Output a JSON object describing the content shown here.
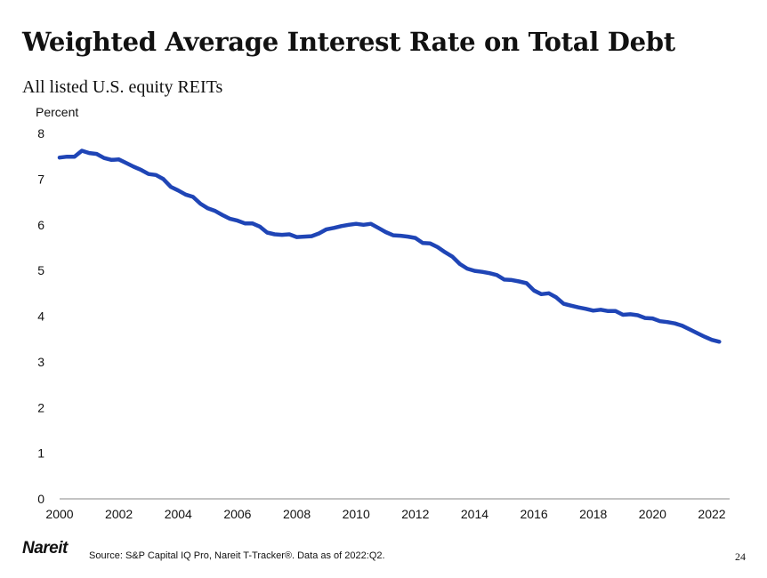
{
  "page": {
    "title": "Weighted Average Interest Rate on Total Debt",
    "subtitle": "All listed U.S. equity REITs",
    "logo_text": "Nareit",
    "source": "Source: S&P Capital IQ Pro, Nareit T-Tracker®. Data as of 2022:Q2.",
    "page_number": "24"
  },
  "chart_data": {
    "type": "line",
    "ylabel": "Percent",
    "xlabel": "",
    "xlim": [
      2000,
      2022.6
    ],
    "ylim": [
      0,
      8
    ],
    "yticks": [
      0,
      1,
      2,
      3,
      4,
      5,
      6,
      7,
      8
    ],
    "xticks": [
      2000,
      2002,
      2004,
      2006,
      2008,
      2010,
      2012,
      2014,
      2016,
      2018,
      2020,
      2022
    ],
    "grid": false,
    "line_color": "#1f45b6",
    "series": [
      {
        "x": [
          2000.0,
          2000.25,
          2000.5,
          2000.75,
          2001.0,
          2001.25,
          2001.5,
          2001.75,
          2002.0,
          2002.25,
          2002.5,
          2002.75,
          2003.0,
          2003.25,
          2003.5,
          2003.75,
          2004.0,
          2004.25,
          2004.5,
          2004.75,
          2005.0,
          2005.25,
          2005.5,
          2005.75,
          2006.0,
          2006.25,
          2006.5,
          2006.75,
          2007.0,
          2007.25,
          2007.5,
          2007.75,
          2008.0,
          2008.25,
          2008.5,
          2008.75,
          2009.0,
          2009.25,
          2009.5,
          2009.75,
          2010.0,
          2010.25,
          2010.5,
          2010.75,
          2011.0,
          2011.25,
          2011.5,
          2011.75,
          2012.0,
          2012.25,
          2012.5,
          2012.75,
          2013.0,
          2013.25,
          2013.5,
          2013.75,
          2014.0,
          2014.25,
          2014.5,
          2014.75,
          2015.0,
          2015.25,
          2015.5,
          2015.75,
          2016.0,
          2016.25,
          2016.5,
          2016.75,
          2017.0,
          2017.25,
          2017.5,
          2017.75,
          2018.0,
          2018.25,
          2018.5,
          2018.75,
          2019.0,
          2019.25,
          2019.5,
          2019.75,
          2020.0,
          2020.25,
          2020.5,
          2020.75,
          2021.0,
          2021.25,
          2021.5,
          2021.75,
          2022.0,
          2022.25
        ],
        "values": [
          7.47,
          7.49,
          7.49,
          7.62,
          7.57,
          7.55,
          7.46,
          7.42,
          7.43,
          7.35,
          7.27,
          7.2,
          7.11,
          7.09,
          7.0,
          6.83,
          6.75,
          6.66,
          6.61,
          6.46,
          6.36,
          6.3,
          6.21,
          6.13,
          6.09,
          6.03,
          6.03,
          5.96,
          5.83,
          5.79,
          5.78,
          5.79,
          5.73,
          5.74,
          5.75,
          5.81,
          5.9,
          5.93,
          5.97,
          6.0,
          6.02,
          6.0,
          6.02,
          5.93,
          5.84,
          5.77,
          5.76,
          5.74,
          5.71,
          5.6,
          5.59,
          5.51,
          5.4,
          5.3,
          5.14,
          5.04,
          4.99,
          4.97,
          4.94,
          4.9,
          4.8,
          4.79,
          4.76,
          4.72,
          4.56,
          4.48,
          4.5,
          4.41,
          4.27,
          4.23,
          4.19,
          4.16,
          4.12,
          4.14,
          4.11,
          4.11,
          4.03,
          4.04,
          4.02,
          3.96,
          3.95,
          3.89,
          3.87,
          3.84,
          3.79,
          3.71,
          3.63,
          3.55,
          3.48,
          3.44
        ]
      }
    ]
  }
}
